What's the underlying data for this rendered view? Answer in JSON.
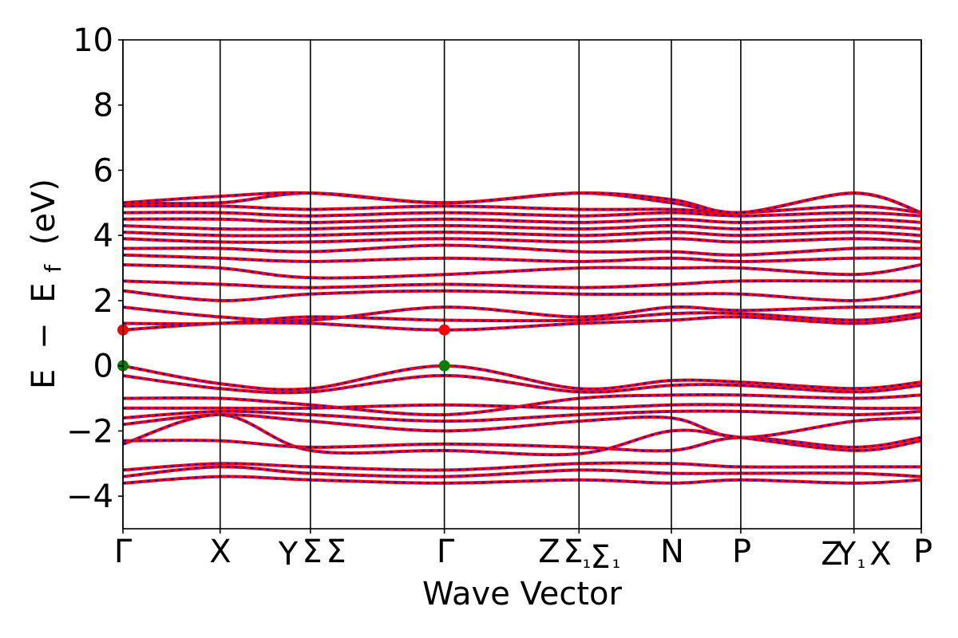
{
  "chart_data": {
    "type": "line",
    "title": "",
    "xlabel": "Wave Vector",
    "ylabel_parts": {
      "a": "E",
      "b": "−",
      "c": "E",
      "sub": "f",
      "d": "(eV)"
    },
    "ylim": [
      -5,
      10
    ],
    "yticks": [
      {
        "value": 10,
        "label": "10"
      },
      {
        "value": 8,
        "label": "8"
      },
      {
        "value": 6,
        "label": "6"
      },
      {
        "value": 4,
        "label": "4"
      },
      {
        "value": 2,
        "label": "2"
      },
      {
        "value": 0,
        "label": "0"
      },
      {
        "value": -2,
        "label": "−2"
      },
      {
        "value": -4,
        "label": "−4"
      }
    ],
    "xlim": [
      0,
      11.5
    ],
    "kpoint_ticks": [
      {
        "pos": 0.0,
        "label": "Γ"
      },
      {
        "pos": 1.4,
        "label": "X"
      },
      {
        "pos": 2.7,
        "label": "Y|Σ"
      },
      {
        "pos": 4.63,
        "label": "Γ"
      },
      {
        "pos": 6.57,
        "label": "Z|Σ₁"
      },
      {
        "pos": 7.9,
        "label": "N"
      },
      {
        "pos": 8.9,
        "label": "P"
      },
      {
        "pos": 10.53,
        "label": "Y₁|X"
      },
      {
        "pos": 11.5,
        "label": "P"
      }
    ],
    "kpoint_label_texts": [
      "Γ",
      "X",
      "Y",
      "Σ",
      "Σ",
      "Γ",
      "Z",
      "Σ",
      "₁",
      "Σ",
      "₁",
      "N",
      "P",
      "Z",
      "Y",
      "₁",
      "X",
      "P"
    ],
    "series": [
      {
        "name": "",
        "color": "#ff0000",
        "style": "solid"
      },
      {
        "name": "",
        "color": "#0000ff",
        "style": "dashed"
      }
    ],
    "bands": [
      {
        "k": [
          0,
          1.4,
          2.7,
          4.63,
          6.57,
          7.9,
          8.9,
          10.53,
          11.5
        ],
        "e": [
          0.0,
          -0.55,
          -0.7,
          0.0,
          -0.7,
          -0.45,
          -0.5,
          -0.7,
          -0.5
        ]
      },
      {
        "k": [
          0,
          1.4,
          2.7,
          4.63,
          6.57,
          7.9,
          8.9,
          10.53,
          11.5
        ],
        "e": [
          -0.3,
          -0.7,
          -0.8,
          -0.3,
          -0.8,
          -0.6,
          -0.6,
          -0.8,
          -0.6
        ]
      },
      {
        "k": [
          0,
          1.4,
          2.7,
          4.63,
          6.57,
          7.9,
          8.9,
          10.53,
          11.5
        ],
        "e": [
          -1.0,
          -1.0,
          -1.2,
          -1.5,
          -1.0,
          -0.9,
          -0.9,
          -1.0,
          -0.9
        ]
      },
      {
        "k": [
          0,
          1.4,
          2.7,
          4.63,
          6.57,
          7.9,
          8.9,
          10.53,
          11.5
        ],
        "e": [
          -1.3,
          -1.3,
          -1.3,
          -1.2,
          -1.3,
          -1.2,
          -1.2,
          -1.3,
          -1.3
        ]
      },
      {
        "k": [
          0,
          1.4,
          2.7,
          4.63,
          6.57,
          7.9,
          8.9,
          10.53,
          11.5
        ],
        "e": [
          -1.6,
          -1.4,
          -1.5,
          -1.7,
          -1.5,
          -1.4,
          -1.4,
          -1.5,
          -1.4
        ]
      },
      {
        "k": [
          0,
          1.4,
          2.7,
          4.63,
          6.57,
          7.9,
          8.9,
          10.53,
          11.5
        ],
        "e": [
          -1.8,
          -1.5,
          -1.7,
          -2.0,
          -1.7,
          -1.6,
          -2.2,
          -1.7,
          -1.6
        ]
      },
      {
        "k": [
          0,
          1.4,
          2.7,
          4.63,
          6.57,
          7.9,
          8.9,
          10.53,
          11.5
        ],
        "e": [
          -2.3,
          -2.3,
          -2.5,
          -2.4,
          -2.5,
          -2.6,
          -2.2,
          -2.5,
          -2.2
        ]
      },
      {
        "k": [
          0,
          1.4,
          2.7,
          4.63,
          6.57,
          7.9,
          8.9,
          10.53,
          11.5
        ],
        "e": [
          -2.4,
          -1.5,
          -2.6,
          -2.6,
          -2.7,
          -2.0,
          -2.2,
          -2.6,
          -2.3
        ]
      },
      {
        "k": [
          0,
          1.4,
          2.7,
          4.63,
          6.57,
          7.9,
          8.9,
          10.53,
          11.5
        ],
        "e": [
          -3.2,
          -3.0,
          -3.1,
          -3.2,
          -3.0,
          -3.0,
          -3.1,
          -3.1,
          -3.1
        ]
      },
      {
        "k": [
          0,
          1.4,
          2.7,
          4.63,
          6.57,
          7.9,
          8.9,
          10.53,
          11.5
        ],
        "e": [
          -3.4,
          -3.1,
          -3.3,
          -3.4,
          -3.2,
          -3.3,
          -3.3,
          -3.3,
          -3.4
        ]
      },
      {
        "k": [
          0,
          1.4,
          2.7,
          4.63,
          6.57,
          7.9,
          8.9,
          10.53,
          11.5
        ],
        "e": [
          -3.6,
          -3.4,
          -3.5,
          -3.6,
          -3.5,
          -3.6,
          -3.5,
          -3.6,
          -3.5
        ]
      },
      {
        "k": [
          0,
          1.4,
          2.7,
          4.63,
          6.57,
          7.9,
          8.9,
          10.53,
          11.5
        ],
        "e": [
          1.1,
          1.3,
          1.3,
          1.1,
          1.3,
          1.4,
          1.5,
          1.3,
          1.5
        ]
      },
      {
        "k": [
          0,
          1.4,
          2.7,
          4.63,
          6.57,
          7.9,
          8.9,
          10.53,
          11.5
        ],
        "e": [
          1.3,
          1.3,
          1.5,
          1.4,
          1.4,
          1.6,
          1.6,
          1.4,
          1.6
        ]
      },
      {
        "k": [
          0,
          1.4,
          2.7,
          4.63,
          6.57,
          7.9,
          8.9,
          10.53,
          11.5
        ],
        "e": [
          1.8,
          1.5,
          1.4,
          1.8,
          1.5,
          1.8,
          1.7,
          1.8,
          1.8
        ]
      },
      {
        "k": [
          0,
          1.4,
          2.7,
          4.63,
          6.57,
          7.9,
          8.9,
          10.53,
          11.5
        ],
        "e": [
          2.3,
          2.0,
          2.2,
          2.3,
          2.2,
          2.2,
          2.2,
          2.0,
          2.3
        ]
      },
      {
        "k": [
          0,
          1.4,
          2.7,
          4.63,
          6.57,
          7.9,
          8.9,
          10.53,
          11.5
        ],
        "e": [
          2.6,
          2.5,
          2.4,
          2.5,
          2.4,
          2.5,
          2.6,
          2.6,
          2.6
        ]
      },
      {
        "k": [
          0,
          1.4,
          2.7,
          4.63,
          6.57,
          7.9,
          8.9,
          10.53,
          11.5
        ],
        "e": [
          3.1,
          3.0,
          2.7,
          2.8,
          3.0,
          3.0,
          3.0,
          2.8,
          3.1
        ]
      },
      {
        "k": [
          0,
          1.4,
          2.7,
          4.63,
          6.57,
          7.9,
          8.9,
          10.53,
          11.5
        ],
        "e": [
          3.4,
          3.3,
          3.2,
          3.3,
          3.2,
          3.3,
          3.2,
          3.3,
          3.3
        ]
      },
      {
        "k": [
          0,
          1.4,
          2.7,
          4.63,
          6.57,
          7.9,
          8.9,
          10.53,
          11.5
        ],
        "e": [
          3.6,
          3.6,
          3.5,
          3.7,
          3.5,
          3.5,
          3.4,
          3.6,
          3.6
        ]
      },
      {
        "k": [
          0,
          1.4,
          2.7,
          4.63,
          6.57,
          7.9,
          8.9,
          10.53,
          11.5
        ],
        "e": [
          3.9,
          3.8,
          3.8,
          3.9,
          3.8,
          3.9,
          3.8,
          3.9,
          3.8
        ]
      },
      {
        "k": [
          0,
          1.4,
          2.7,
          4.63,
          6.57,
          7.9,
          8.9,
          10.53,
          11.5
        ],
        "e": [
          4.1,
          4.0,
          4.0,
          4.1,
          4.0,
          4.1,
          4.0,
          4.1,
          4.0
        ]
      },
      {
        "k": [
          0,
          1.4,
          2.7,
          4.63,
          6.57,
          7.9,
          8.9,
          10.53,
          11.5
        ],
        "e": [
          4.3,
          4.2,
          4.2,
          4.3,
          4.2,
          4.3,
          4.2,
          4.3,
          4.2
        ]
      },
      {
        "k": [
          0,
          1.4,
          2.7,
          4.63,
          6.57,
          7.9,
          8.9,
          10.53,
          11.5
        ],
        "e": [
          4.5,
          4.5,
          4.4,
          4.5,
          4.4,
          4.5,
          4.4,
          4.5,
          4.4
        ]
      },
      {
        "k": [
          0,
          1.4,
          2.7,
          4.63,
          6.57,
          7.9,
          8.9,
          10.53,
          11.5
        ],
        "e": [
          4.7,
          4.7,
          4.6,
          4.7,
          4.6,
          4.7,
          4.6,
          4.7,
          4.6
        ]
      },
      {
        "k": [
          0,
          1.4,
          2.7,
          4.63,
          6.57,
          7.9,
          8.9,
          10.53,
          11.5
        ],
        "e": [
          4.9,
          4.9,
          4.8,
          4.9,
          4.8,
          4.8,
          4.7,
          4.9,
          4.7
        ]
      },
      {
        "k": [
          0,
          1.4,
          2.7,
          4.63,
          6.57,
          7.9,
          8.9,
          10.53,
          11.5
        ],
        "e": [
          5.0,
          5.0,
          5.3,
          5.0,
          5.3,
          5.0,
          4.7,
          5.3,
          4.7
        ]
      },
      {
        "k": [
          0,
          1.4,
          2.7,
          4.63,
          6.57,
          7.9,
          8.9,
          10.53,
          11.5
        ],
        "e": [
          5.0,
          5.2,
          5.3,
          5.0,
          5.3,
          5.1,
          4.7,
          5.3,
          4.7
        ]
      }
    ],
    "band_points": [
      {
        "k": 0,
        "e": 0.0,
        "color": "#008000"
      },
      {
        "k": 4.63,
        "e": 0.0,
        "color": "#008000"
      },
      {
        "k": 0,
        "e": 1.1,
        "color": "#ff0000"
      },
      {
        "k": 4.63,
        "e": 1.1,
        "color": "#ff0000"
      }
    ],
    "grid": false,
    "legend": "none"
  }
}
